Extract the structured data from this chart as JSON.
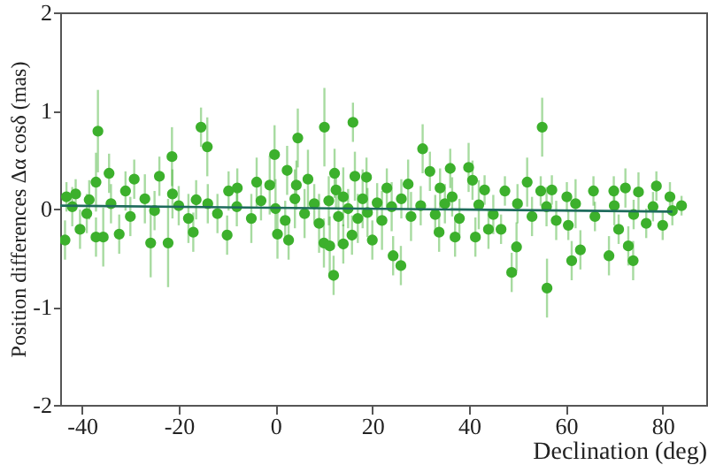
{
  "chart_data": {
    "type": "scatter",
    "xlabel": "Declination (deg)",
    "ylabel": "Position differences Δα cosδ (mas)",
    "xlim": [
      -44.5,
      89
    ],
    "ylim": [
      -2,
      2
    ],
    "xticks": [
      -40,
      -20,
      0,
      20,
      40,
      60,
      80
    ],
    "yticks": [
      -2,
      -1,
      0,
      1,
      2
    ],
    "grid": false,
    "series": [
      {
        "color": "#3cb02c",
        "marker": "circle",
        "x": [
          -36.7,
          -15.4,
          -14.1,
          -21.4,
          -34.4,
          -0.2,
          4.6,
          10.1,
          16.0,
          30.4,
          55.1,
          39.9,
          36.1,
          31.9,
          12.2,
          -25.8,
          -22.2,
          12.0,
          24.3,
          25.9,
          48.8,
          56.1,
          49.8,
          61.2,
          63.0,
          68.9,
          73.9,
          72.9,
          -43.5,
          -37.1,
          -35.6,
          -40.4,
          -32.3,
          -17,
          -10,
          0.4,
          2.7,
          10,
          11.2,
          14,
          20,
          15.8,
          33.8,
          37.1,
          41.3,
          44,
          46.6,
          60.5,
          70.9,
          76.6,
          80,
          -43.2,
          -41.3,
          -38.5,
          -37.1,
          -31,
          -29.2,
          -24,
          -21.3,
          -16.4,
          -9.7,
          -7.9,
          -3.9,
          -1.2,
          2.4,
          4.3,
          6.7,
          12.5,
          16.4,
          18.8,
          23,
          27.4,
          34,
          36.5,
          40.7,
          43.2,
          47.4,
          52,
          54.8,
          57.1,
          60.2,
          65.7,
          69.9,
          72.3,
          75,
          78.7,
          81.5,
          83.9,
          -42,
          -39,
          -34,
          -30,
          -27,
          -25,
          -20,
          -18,
          -14,
          -12,
          -8,
          -5,
          -3,
          0,
          2,
          4,
          6,
          8,
          9,
          11,
          13,
          14,
          15,
          17,
          18,
          19,
          21,
          22,
          24,
          26,
          28,
          30,
          33,
          35,
          38,
          42,
          45,
          50,
          53,
          56,
          58,
          62,
          66,
          70,
          74,
          78,
          82
        ],
        "values": [
          0.79,
          0.83,
          0.63,
          0.53,
          0.36,
          0.55,
          0.72,
          0.83,
          0.88,
          0.61,
          0.83,
          0.42,
          0.41,
          0.38,
          0.36,
          -0.35,
          -0.35,
          -0.68,
          -0.48,
          -0.58,
          -0.65,
          -0.81,
          -0.39,
          -0.53,
          -0.42,
          -0.48,
          -0.53,
          -0.38,
          -0.32,
          -0.29,
          -0.29,
          -0.21,
          -0.26,
          -0.24,
          -0.27,
          -0.26,
          -0.32,
          -0.35,
          -0.38,
          -0.36,
          -0.32,
          -0.27,
          -0.24,
          -0.29,
          -0.29,
          -0.21,
          -0.21,
          -0.17,
          -0.21,
          -0.15,
          -0.17,
          0.12,
          0.15,
          0.09,
          0.27,
          0.18,
          0.3,
          0.33,
          0.15,
          0.09,
          0.18,
          0.21,
          0.27,
          0.24,
          0.39,
          0.24,
          0.3,
          0.19,
          0.33,
          0.32,
          0.21,
          0.25,
          0.21,
          0.12,
          0.29,
          0.19,
          0.18,
          0.27,
          0.18,
          0.19,
          0.12,
          0.18,
          0.18,
          0.21,
          0.17,
          0.23,
          0.12,
          0.03,
          0.02,
          -0.05,
          0.05,
          -0.08,
          0.1,
          -0.02,
          0.03,
          -0.1,
          0.05,
          -0.05,
          0.02,
          -0.1,
          0.08,
          0,
          -0.12,
          0.1,
          -0.05,
          0.05,
          -0.15,
          0.08,
          -0.08,
          0.12,
          0,
          -0.1,
          0.1,
          -0.04,
          0.06,
          -0.12,
          0.02,
          0.1,
          -0.08,
          0.03,
          -0.06,
          0.05,
          -0.1,
          0.04,
          -0.06,
          0.05,
          -0.08,
          0.02,
          -0.12,
          0.05,
          -0.08,
          0.03,
          -0.06,
          0.02,
          -0.02
        ],
        "errors": [
          0.42,
          0.2,
          0.3,
          0.3,
          0.2,
          0.3,
          0.3,
          0.4,
          0.2,
          0.25,
          0.3,
          0.25,
          0.2,
          0.2,
          0.25,
          0.35,
          0.45,
          0.2,
          0.2,
          0.2,
          0.2,
          0.3,
          0.25,
          0.2,
          0.2,
          0.2,
          0.2,
          0.2,
          0.2,
          0.2,
          0.3,
          0.2,
          0.2,
          0.2,
          0.2,
          0.25,
          0.2,
          0.25,
          0.3,
          0.2,
          0.2,
          0.2,
          0.2,
          0.2,
          0.2,
          0.2,
          0.15,
          0.15,
          0.15,
          0.15,
          0.15,
          0.15,
          0.15,
          0.2,
          0.3,
          0.2,
          0.2,
          0.2,
          0.25,
          0.2,
          0.2,
          0.2,
          0.25,
          0.3,
          0.25,
          0.25,
          0.3,
          0.2,
          0.25,
          0.2,
          0.2,
          0.25,
          0.2,
          0.2,
          0.2,
          0.15,
          0.15,
          0.25,
          0.15,
          0.15,
          0.15,
          0.15,
          0.15,
          0.2,
          0.2,
          0.15,
          0.15,
          0.1,
          0.2,
          0.2,
          0.2,
          0.2,
          0.25,
          0.2,
          0.2,
          0.25,
          0.2,
          0.2,
          0.2,
          0.25,
          0.2,
          0.3,
          0.2,
          0.3,
          0.25,
          0.2,
          0.3,
          0.25,
          0.3,
          0.3,
          0.2,
          0.25,
          0.3,
          0.25,
          0.2,
          0.3,
          0.25,
          0.2,
          0.25,
          0.2,
          0.2,
          0.2,
          0.2,
          0.25,
          0.2,
          0.2,
          0.2,
          0.2,
          0.2,
          0.25,
          0.15,
          0.2,
          0.15,
          0.15,
          0.15
        ]
      },
      {
        "type": "line",
        "color": "#1e6b5c",
        "marker": "none",
        "x": [
          -44.5,
          82
        ],
        "values": [
          0.03,
          -0.03
        ]
      }
    ]
  }
}
